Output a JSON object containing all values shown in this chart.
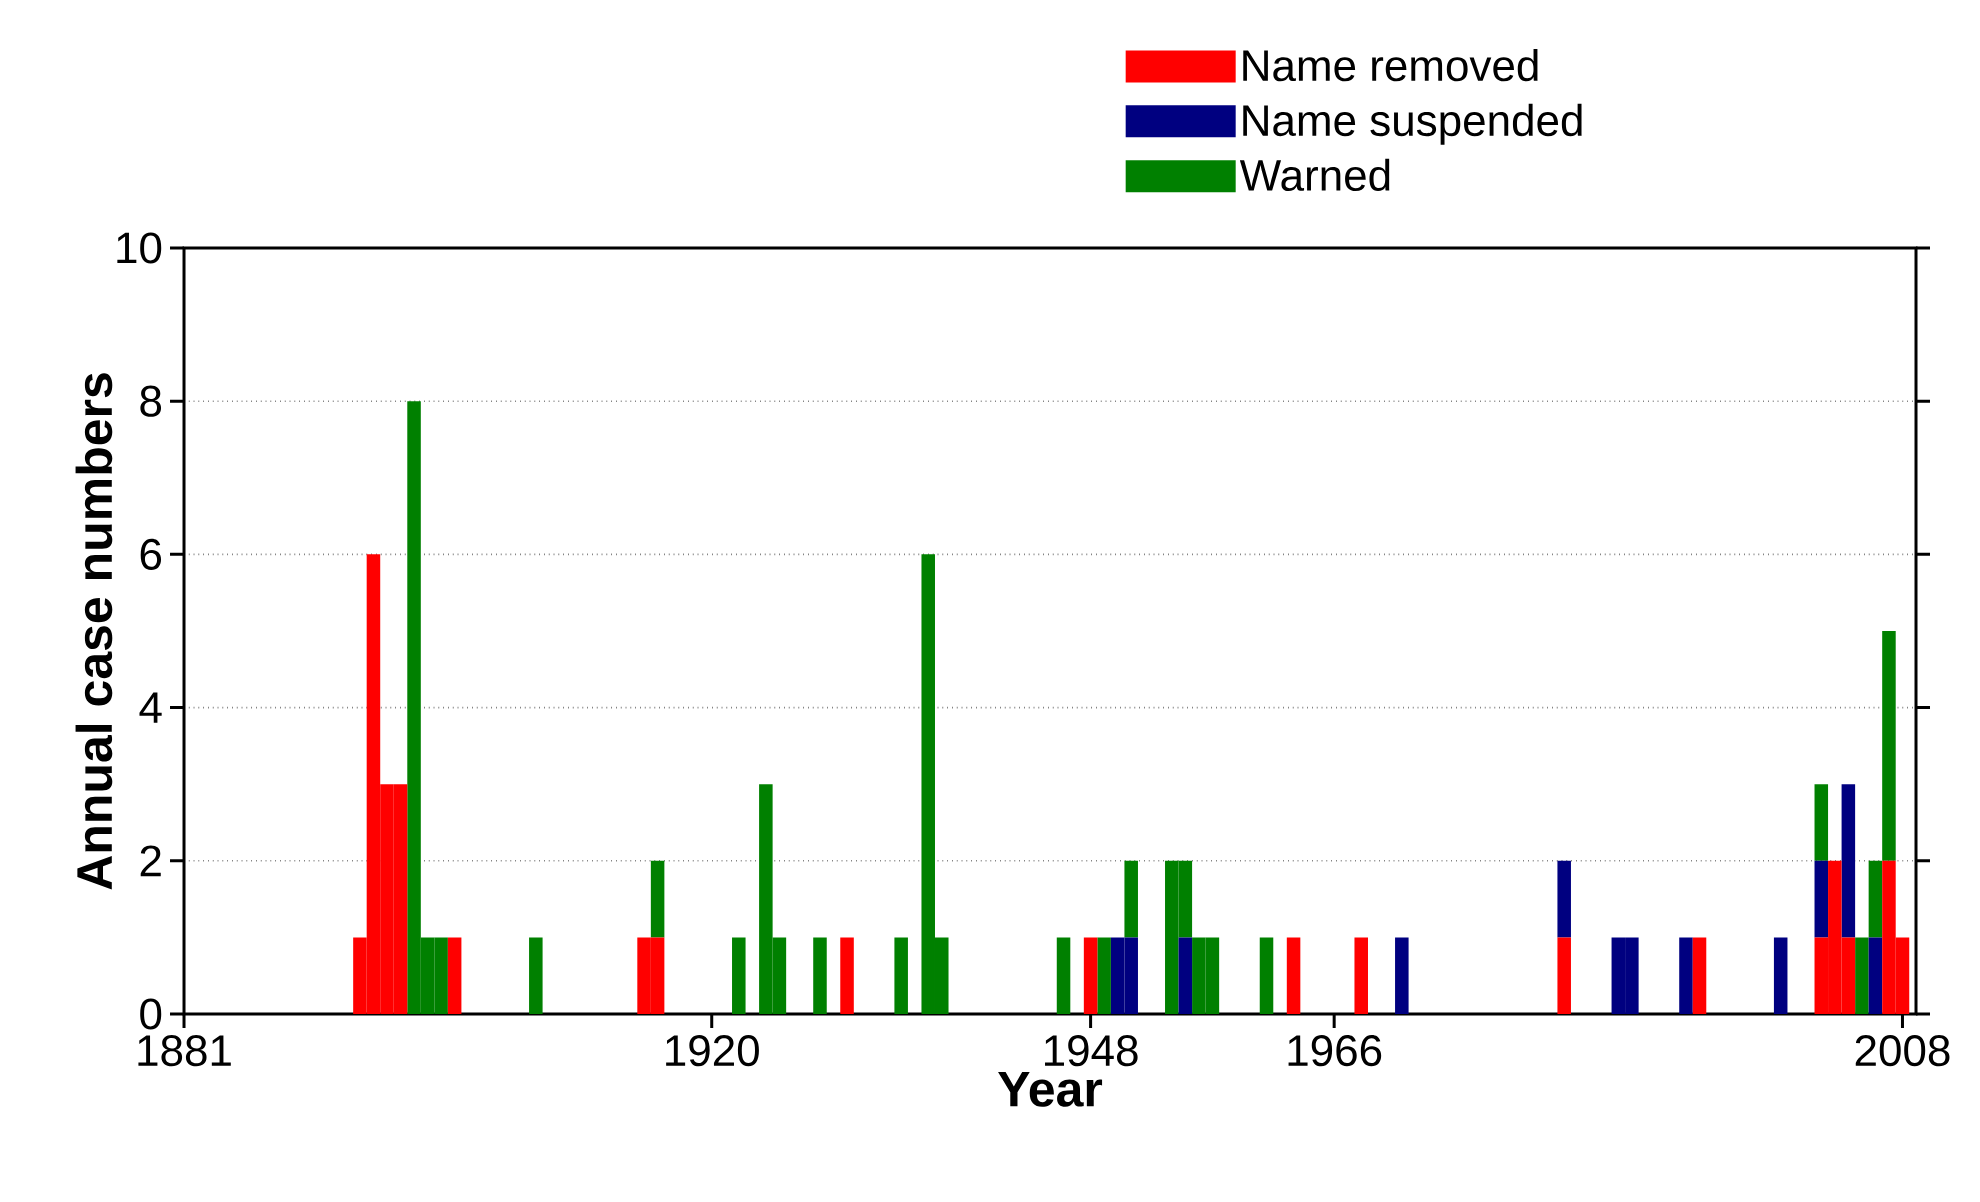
{
  "chart_data": {
    "type": "bar",
    "stacked": true,
    "xlabel": "Year",
    "ylabel": "Annual case numbers",
    "x": [
      1881,
      1882,
      1883,
      1884,
      1885,
      1886,
      1887,
      1888,
      1889,
      1890,
      1891,
      1892,
      1893,
      1894,
      1895,
      1896,
      1897,
      1898,
      1899,
      1900,
      1901,
      1902,
      1903,
      1904,
      1905,
      1906,
      1907,
      1908,
      1909,
      1910,
      1911,
      1912,
      1913,
      1914,
      1915,
      1916,
      1917,
      1918,
      1919,
      1920,
      1921,
      1922,
      1923,
      1924,
      1925,
      1926,
      1927,
      1928,
      1929,
      1930,
      1931,
      1932,
      1933,
      1934,
      1935,
      1936,
      1937,
      1938,
      1939,
      1940,
      1941,
      1942,
      1943,
      1944,
      1945,
      1946,
      1947,
      1948,
      1949,
      1950,
      1951,
      1952,
      1953,
      1954,
      1955,
      1956,
      1957,
      1958,
      1959,
      1960,
      1961,
      1962,
      1963,
      1964,
      1965,
      1966,
      1967,
      1968,
      1969,
      1970,
      1971,
      1972,
      1973,
      1974,
      1975,
      1976,
      1977,
      1978,
      1979,
      1980,
      1981,
      1982,
      1983,
      1984,
      1985,
      1986,
      1987,
      1988,
      1989,
      1990,
      1991,
      1992,
      1993,
      1994,
      1995,
      1996,
      1997,
      1998,
      1999,
      2000,
      2001,
      2002,
      2003,
      2004,
      2005,
      2006,
      2007,
      2008
    ],
    "series": [
      {
        "name": "Name removed",
        "color": "#ff0000",
        "values": [
          0,
          0,
          0,
          0,
          0,
          0,
          0,
          0,
          0,
          0,
          0,
          0,
          0,
          1,
          6,
          3,
          3,
          0,
          0,
          0,
          1,
          0,
          0,
          0,
          0,
          0,
          0,
          0,
          0,
          0,
          0,
          0,
          0,
          0,
          1,
          1,
          0,
          0,
          0,
          0,
          0,
          0,
          0,
          0,
          0,
          0,
          0,
          0,
          0,
          1,
          0,
          0,
          0,
          0,
          0,
          0,
          0,
          0,
          0,
          0,
          0,
          0,
          0,
          0,
          0,
          0,
          0,
          1,
          0,
          0,
          0,
          0,
          0,
          0,
          0,
          0,
          0,
          0,
          0,
          0,
          0,
          0,
          1,
          0,
          0,
          0,
          0,
          1,
          0,
          0,
          0,
          0,
          0,
          0,
          0,
          0,
          0,
          0,
          0,
          0,
          0,
          0,
          1,
          0,
          0,
          0,
          0,
          0,
          0,
          0,
          0,
          0,
          1,
          0,
          0,
          0,
          0,
          0,
          0,
          0,
          0,
          1,
          2,
          1,
          0,
          0,
          2,
          1
        ]
      },
      {
        "name": "Name suspended",
        "color": "#000080",
        "values": [
          0,
          0,
          0,
          0,
          0,
          0,
          0,
          0,
          0,
          0,
          0,
          0,
          0,
          0,
          0,
          0,
          0,
          0,
          0,
          0,
          0,
          0,
          0,
          0,
          0,
          0,
          0,
          0,
          0,
          0,
          0,
          0,
          0,
          0,
          0,
          0,
          0,
          0,
          0,
          0,
          0,
          0,
          0,
          0,
          0,
          0,
          0,
          0,
          0,
          0,
          0,
          0,
          0,
          0,
          0,
          0,
          0,
          0,
          0,
          0,
          0,
          0,
          0,
          0,
          0,
          0,
          0,
          0,
          0,
          1,
          1,
          0,
          0,
          0,
          1,
          0,
          0,
          0,
          0,
          0,
          0,
          0,
          0,
          0,
          0,
          0,
          0,
          0,
          0,
          0,
          1,
          0,
          0,
          0,
          0,
          0,
          0,
          0,
          0,
          0,
          0,
          0,
          1,
          0,
          0,
          0,
          1,
          1,
          0,
          0,
          0,
          1,
          0,
          0,
          0,
          0,
          0,
          0,
          1,
          0,
          0,
          1,
          0,
          2,
          0,
          1,
          0,
          0
        ]
      },
      {
        "name": "Warned",
        "color": "#008000",
        "values": [
          0,
          0,
          0,
          0,
          0,
          0,
          0,
          0,
          0,
          0,
          0,
          0,
          0,
          0,
          0,
          0,
          0,
          8,
          1,
          1,
          0,
          0,
          0,
          0,
          0,
          0,
          1,
          0,
          0,
          0,
          0,
          0,
          0,
          0,
          0,
          1,
          0,
          0,
          0,
          0,
          0,
          1,
          0,
          3,
          1,
          0,
          0,
          1,
          0,
          0,
          0,
          0,
          0,
          1,
          0,
          6,
          1,
          0,
          0,
          0,
          0,
          0,
          0,
          0,
          0,
          1,
          0,
          0,
          1,
          0,
          1,
          0,
          0,
          2,
          1,
          1,
          1,
          0,
          0,
          0,
          1,
          0,
          0,
          0,
          0,
          0,
          0,
          0,
          0,
          0,
          0,
          0,
          0,
          0,
          0,
          0,
          0,
          0,
          0,
          0,
          0,
          0,
          0,
          0,
          0,
          0,
          0,
          0,
          0,
          0,
          0,
          0,
          0,
          0,
          0,
          0,
          0,
          0,
          0,
          0,
          0,
          1,
          0,
          0,
          1,
          1,
          3,
          0
        ]
      }
    ],
    "xlim": [
      1881,
      2009
    ],
    "xticks": [
      1881,
      1920,
      1948,
      1966,
      2008
    ],
    "ylim": [
      0,
      10
    ],
    "yticks": [
      0,
      2,
      4,
      6,
      8,
      10
    ],
    "grid": "y",
    "legend": "top"
  }
}
